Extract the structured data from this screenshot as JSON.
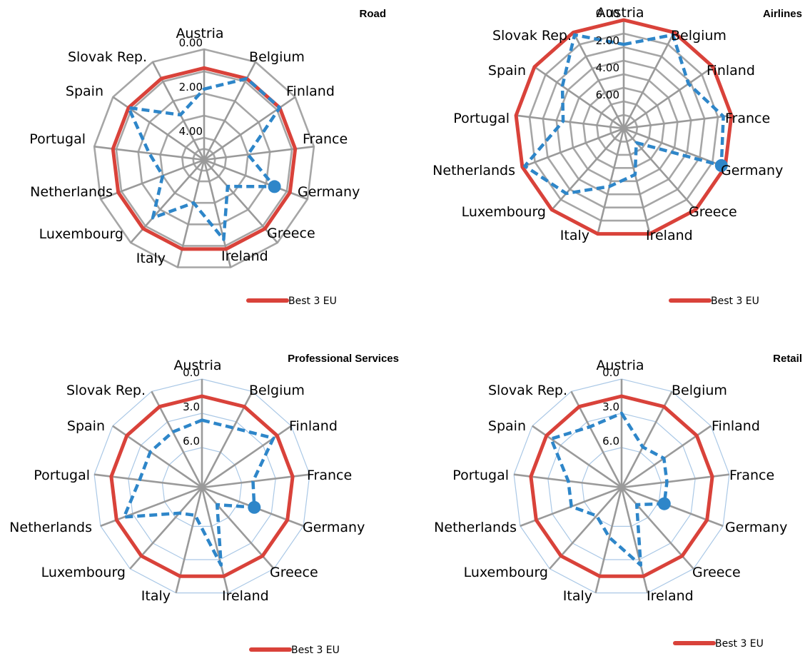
{
  "chart_data": [
    {
      "type": "radar",
      "title": "Road",
      "categories": [
        "Austria",
        "Belgium",
        "Finland",
        "France",
        "Germany",
        "Greece",
        "Ireland",
        "Italy",
        "Luxembourg",
        "Netherlands",
        "Portugal",
        "Spain",
        "Slovak Rep."
      ],
      "rlim": [
        0,
        5
      ],
      "reversed": true,
      "tick_values": [
        0,
        2,
        4
      ],
      "tick_labels": [
        "0.00",
        "2.00",
        "4.00"
      ],
      "grid_style": "grey",
      "legend": "bottom-right",
      "series": [
        {
          "name": "Best 3 EU",
          "color": "#d9423a",
          "style": "solid",
          "values": [
            0.85,
            0.85,
            0.85,
            0.85,
            0.85,
            0.85,
            0.85,
            0.85,
            0.85,
            0.85,
            0.85,
            0.85,
            0.85
          ]
        },
        {
          "name": "",
          "color": "#2e86c9",
          "style": "dashed",
          "values": [
            1.8,
            0.85,
            0.85,
            3.0,
            1.6,
            3.4,
            1.3,
            3.0,
            1.5,
            3.0,
            2.5,
            0.85,
            2.7
          ],
          "marker_index": 4,
          "marker_radius": 4.7
        }
      ]
    },
    {
      "type": "radar",
      "title": "Airlines",
      "categories": [
        "Austria",
        "Belgium",
        "Finland",
        "France",
        "Germany",
        "Greece",
        "Ireland",
        "Italy",
        "Luxembourg",
        "Netherlands",
        "Portugal",
        "Spain",
        "Slovak Rep."
      ],
      "rlim": [
        0,
        8
      ],
      "reversed": true,
      "tick_values": [
        0,
        2,
        4,
        6
      ],
      "tick_labels": [
        "0.00",
        "2.00",
        "4.00",
        "6.00"
      ],
      "grid_style": "grey",
      "legend": "bottom-right",
      "series": [
        {
          "name": "Best 3 EU",
          "color": "#d9423a",
          "style": "solid",
          "values": [
            0,
            0,
            0,
            0,
            0,
            0,
            0,
            0,
            0,
            0,
            0,
            0,
            0
          ]
        },
        {
          "name": "",
          "color": "#2e86c9",
          "style": "dashed",
          "values": [
            1.8,
            0.2,
            2.2,
            0.6,
            0.3,
            6.6,
            4.5,
            3.6,
            1.6,
            0.2,
            3.5,
            2.5,
            0.2
          ],
          "marker_index": 4,
          "marker_radius": 7.2
        }
      ]
    },
    {
      "type": "radar",
      "title": "Professional Services",
      "categories": [
        "Austria",
        "Belgium",
        "Finland",
        "France",
        "Germany",
        "Greece",
        "Ireland",
        "Italy",
        "Luxembourg",
        "Netherlands",
        "Portugal",
        "Spain",
        "Slovak Rep."
      ],
      "rlim": [
        0,
        9.5
      ],
      "reversed": true,
      "tick_values": [
        0,
        3,
        6
      ],
      "tick_labels": [
        "0.0",
        "3.0",
        "6.0"
      ],
      "grid_style": "light-blue",
      "legend": "bottom-right",
      "series": [
        {
          "name": "Best 3 EU",
          "color": "#d9423a",
          "style": "solid",
          "values": [
            1.5,
            1.5,
            1.5,
            1.5,
            1.5,
            1.5,
            1.5,
            1.5,
            1.5,
            1.5,
            1.5,
            1.5,
            1.5
          ]
        },
        {
          "name": "",
          "color": "#2e86c9",
          "style": "dashed",
          "values": [
            3.6,
            3.6,
            1.9,
            5.0,
            4.6,
            7.5,
            2.5,
            7.0,
            6.5,
            2.2,
            4.0,
            4.0,
            4.0
          ],
          "marker_index": 4,
          "marker_radius": 5.1
        }
      ]
    },
    {
      "type": "radar",
      "title": "Retail",
      "categories": [
        "Austria",
        "Belgium",
        "Finland",
        "France",
        "Germany",
        "Greece",
        "Ireland",
        "Italy",
        "Luxembourg",
        "Netherlands",
        "Portugal",
        "Spain",
        "Slovak Rep."
      ],
      "rlim": [
        0,
        9.5
      ],
      "reversed": true,
      "tick_values": [
        0,
        3,
        6
      ],
      "tick_labels": [
        "0.0",
        "3.0",
        "6.0"
      ],
      "grid_style": "light-blue",
      "legend": "bottom-right",
      "series": [
        {
          "name": "Best 3 EU",
          "color": "#d9423a",
          "style": "solid",
          "values": [
            1.5,
            1.5,
            1.5,
            1.5,
            1.5,
            1.5,
            1.5,
            1.5,
            1.5,
            1.5,
            1.5,
            1.5,
            1.5
          ]
        },
        {
          "name": "",
          "color": "#2e86c9",
          "style": "dashed",
          "values": [
            3.0,
            5.5,
            5.0,
            5.5,
            5.5,
            7.5,
            2.5,
            5.0,
            6.2,
            4.8,
            4.8,
            2.0,
            3.5
          ],
          "marker_index": 4,
          "marker_radius": 6.3
        }
      ]
    }
  ]
}
